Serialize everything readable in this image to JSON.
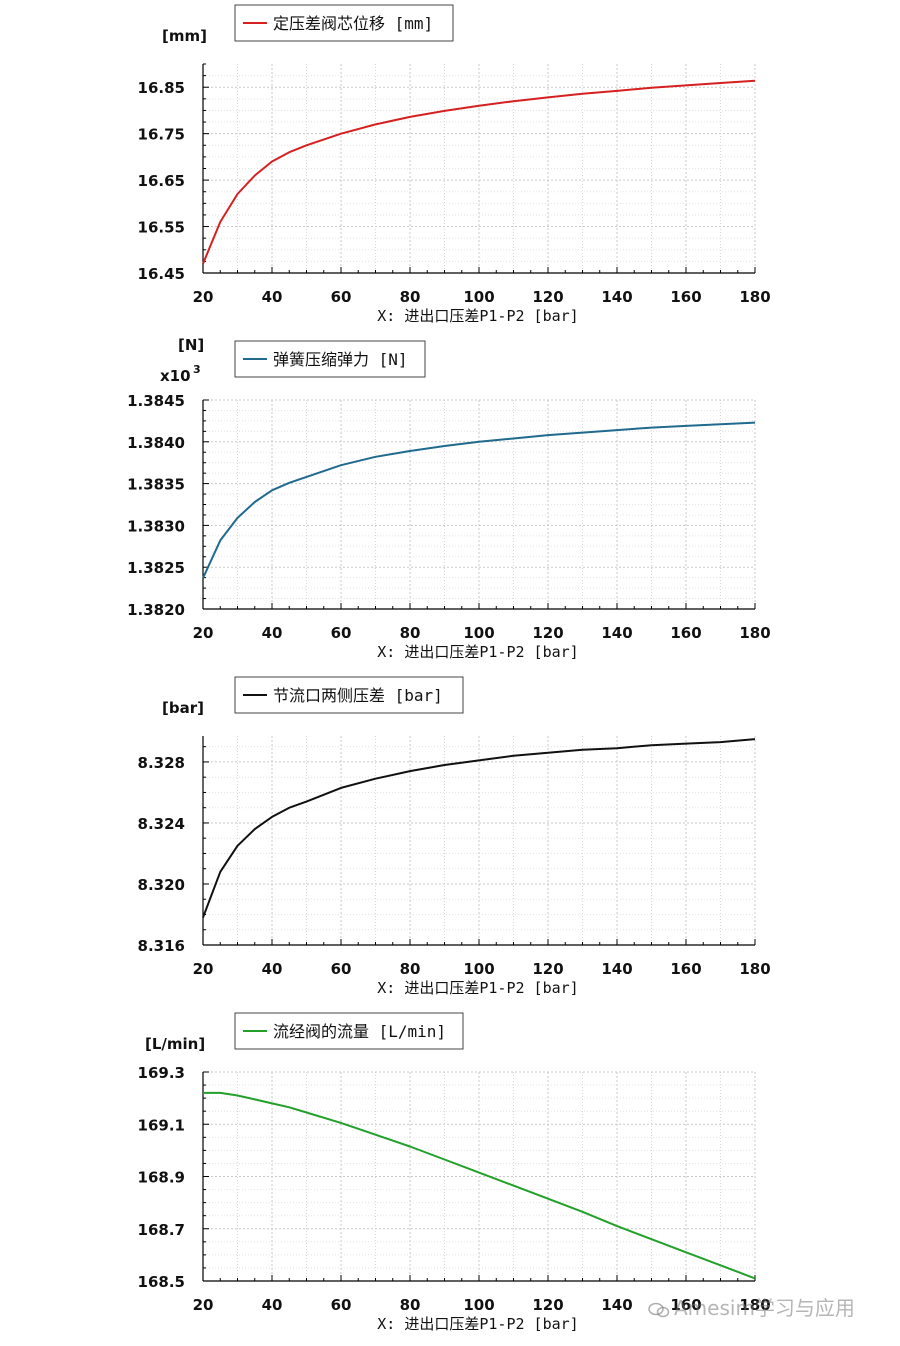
{
  "chart_data": [
    {
      "type": "line",
      "unit_label": "[mm]",
      "multiplier": "",
      "legend": "定压差阀芯位移 [mm]",
      "xlabel": "X: 进出口压差P1-P2 [bar]",
      "color": "#d62020",
      "xlim": [
        20,
        180
      ],
      "ylim": [
        16.45,
        16.9
      ],
      "xticks": [
        "20",
        "40",
        "60",
        "80",
        "100",
        "120",
        "140",
        "160",
        "180"
      ],
      "yticks": [
        "16.45",
        "16.55",
        "16.65",
        "16.75",
        "16.85"
      ],
      "series": [
        {
          "x": [
            20,
            25,
            30,
            35,
            40,
            45,
            50,
            60,
            70,
            80,
            90,
            100,
            110,
            120,
            130,
            140,
            150,
            160,
            170,
            180
          ],
          "values": [
            16.47,
            16.56,
            16.62,
            16.66,
            16.69,
            16.71,
            16.725,
            16.75,
            16.77,
            16.786,
            16.799,
            16.81,
            16.82,
            16.828,
            16.836,
            16.842,
            16.849,
            16.854,
            16.859,
            16.864
          ]
        }
      ]
    },
    {
      "type": "line",
      "unit_label": "[N]",
      "multiplier": "x10",
      "multiplier_exp": "3",
      "legend": "弹簧压缩弹力 [N]",
      "xlabel": "X: 进出口压差P1-P2 [bar]",
      "color": "#1f6a8e",
      "xlim": [
        20,
        180
      ],
      "ylim": [
        1.382,
        1.3845
      ],
      "xticks": [
        "20",
        "40",
        "60",
        "80",
        "100",
        "120",
        "140",
        "160",
        "180"
      ],
      "yticks": [
        "1.3820",
        "1.3825",
        "1.3830",
        "1.3835",
        "1.3840",
        "1.3845"
      ],
      "series": [
        {
          "x": [
            20,
            25,
            30,
            35,
            40,
            45,
            50,
            60,
            70,
            80,
            90,
            100,
            110,
            120,
            130,
            140,
            150,
            160,
            170,
            180
          ],
          "values": [
            1.38237,
            1.38282,
            1.38309,
            1.38328,
            1.38342,
            1.38351,
            1.38358,
            1.38372,
            1.38382,
            1.38389,
            1.38395,
            1.384,
            1.38404,
            1.38408,
            1.38411,
            1.38414,
            1.38417,
            1.38419,
            1.38421,
            1.38423
          ]
        }
      ]
    },
    {
      "type": "line",
      "unit_label": "[bar]",
      "multiplier": "",
      "legend": "节流口两侧压差 [bar]",
      "xlabel": "X: 进出口压差P1-P2 [bar]",
      "color": "#111111",
      "xlim": [
        20,
        180
      ],
      "ylim": [
        8.316,
        8.3297
      ],
      "xticks": [
        "20",
        "40",
        "60",
        "80",
        "100",
        "120",
        "140",
        "160",
        "180"
      ],
      "yticks": [
        "8.316",
        "8.320",
        "8.324",
        "8.328"
      ],
      "series": [
        {
          "x": [
            20,
            25,
            30,
            35,
            40,
            45,
            50,
            60,
            70,
            80,
            90,
            100,
            110,
            120,
            130,
            140,
            150,
            160,
            170,
            180
          ],
          "values": [
            8.3178,
            8.3208,
            8.3225,
            8.3236,
            8.3244,
            8.325,
            8.3254,
            8.3263,
            8.3269,
            8.3274,
            8.3278,
            8.3281,
            8.3284,
            8.3286,
            8.3288,
            8.3289,
            8.3291,
            8.3292,
            8.3293,
            8.3295
          ]
        }
      ]
    },
    {
      "type": "line",
      "unit_label": "[L/min]",
      "multiplier": "",
      "legend": "流经阀的流量 [L/min]",
      "xlabel": "X: 进出口压差P1-P2 [bar]",
      "color": "#22a02a",
      "xlim": [
        20,
        180
      ],
      "ylim": [
        168.5,
        169.3
      ],
      "xticks": [
        "20",
        "40",
        "60",
        "80",
        "100",
        "120",
        "140",
        "160",
        "180"
      ],
      "yticks": [
        "168.5",
        "168.7",
        "168.9",
        "169.1",
        "169.3"
      ],
      "series": [
        {
          "x": [
            20,
            25,
            30,
            35,
            40,
            45,
            50,
            60,
            70,
            80,
            90,
            100,
            110,
            120,
            130,
            140,
            150,
            160,
            170,
            180
          ],
          "values": [
            169.22,
            169.22,
            169.21,
            169.195,
            169.18,
            169.165,
            169.145,
            169.105,
            169.06,
            169.015,
            168.965,
            168.915,
            168.865,
            168.815,
            168.765,
            168.71,
            168.66,
            168.61,
            168.56,
            168.51
          ]
        }
      ]
    }
  ],
  "watermark": "Amesim学习与应用"
}
